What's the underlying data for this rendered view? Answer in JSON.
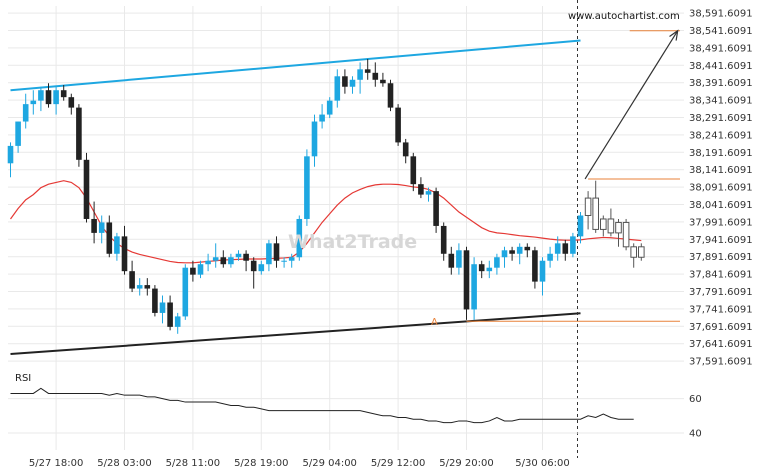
{
  "site_label": "www.autochartist.com",
  "watermark": "What2Trade",
  "point_label": "A",
  "rsi_label": "RSI",
  "colors": {
    "bull": "#1ea7e1",
    "bear": "#222222",
    "ma": "#e53935",
    "resistance": "#1ea7e1",
    "support": "#222222",
    "level": "#e8823a",
    "arrow": "#333333",
    "grid": "#e9e9e9"
  },
  "chart_data": {
    "type": "candlestick",
    "title": "",
    "x_ticks": [
      "5/27 18:00",
      "5/28 03:00",
      "5/28 11:00",
      "5/28 19:00",
      "5/29 04:00",
      "5/29 12:00",
      "5/29 20:00",
      "5/30 06:00"
    ],
    "y_ticks": [
      "38,591.6091",
      "38,541.6091",
      "38,491.6091",
      "38,441.6091",
      "38,391.6091",
      "38,341.6091",
      "38,291.6091",
      "38,241.6091",
      "38,191.6091",
      "38,141.6091",
      "38,091.6091",
      "38,041.6091",
      "37,991.6091",
      "37,941.6091",
      "37,891.6091",
      "37,841.6091",
      "37,791.6091",
      "37,741.6091",
      "37,691.6091",
      "37,641.6091",
      "37,591.6091"
    ],
    "ylim": [
      37566,
      38612
    ],
    "candles": [
      {
        "o": 38160,
        "h": 38220,
        "l": 38120,
        "c": 38210
      },
      {
        "o": 38210,
        "h": 38280,
        "l": 38190,
        "c": 38280
      },
      {
        "o": 38280,
        "h": 38360,
        "l": 38260,
        "c": 38330
      },
      {
        "o": 38330,
        "h": 38370,
        "l": 38300,
        "c": 38340
      },
      {
        "o": 38340,
        "h": 38380,
        "l": 38310,
        "c": 38370
      },
      {
        "o": 38370,
        "h": 38390,
        "l": 38320,
        "c": 38330
      },
      {
        "o": 38330,
        "h": 38380,
        "l": 38300,
        "c": 38370
      },
      {
        "o": 38370,
        "h": 38385,
        "l": 38340,
        "c": 38350
      },
      {
        "o": 38350,
        "h": 38360,
        "l": 38300,
        "c": 38320
      },
      {
        "o": 38320,
        "h": 38330,
        "l": 38150,
        "c": 38170
      },
      {
        "o": 38170,
        "h": 38190,
        "l": 37990,
        "c": 38000
      },
      {
        "o": 38000,
        "h": 38050,
        "l": 37930,
        "c": 37960
      },
      {
        "o": 37960,
        "h": 38010,
        "l": 37930,
        "c": 37990
      },
      {
        "o": 37990,
        "h": 38010,
        "l": 37890,
        "c": 37900
      },
      {
        "o": 37900,
        "h": 37960,
        "l": 37880,
        "c": 37950
      },
      {
        "o": 37950,
        "h": 37980,
        "l": 37840,
        "c": 37850
      },
      {
        "o": 37850,
        "h": 37880,
        "l": 37790,
        "c": 37800
      },
      {
        "o": 37800,
        "h": 37830,
        "l": 37780,
        "c": 37810
      },
      {
        "o": 37810,
        "h": 37830,
        "l": 37780,
        "c": 37800
      },
      {
        "o": 37800,
        "h": 37810,
        "l": 37720,
        "c": 37730
      },
      {
        "o": 37730,
        "h": 37780,
        "l": 37700,
        "c": 37760
      },
      {
        "o": 37760,
        "h": 37780,
        "l": 37680,
        "c": 37690
      },
      {
        "o": 37690,
        "h": 37730,
        "l": 37670,
        "c": 37720
      },
      {
        "o": 37720,
        "h": 37870,
        "l": 37710,
        "c": 37860
      },
      {
        "o": 37860,
        "h": 37880,
        "l": 37820,
        "c": 37840
      },
      {
        "o": 37840,
        "h": 37880,
        "l": 37830,
        "c": 37870
      },
      {
        "o": 37870,
        "h": 37900,
        "l": 37850,
        "c": 37880
      },
      {
        "o": 37880,
        "h": 37930,
        "l": 37860,
        "c": 37890
      },
      {
        "o": 37890,
        "h": 37910,
        "l": 37860,
        "c": 37870
      },
      {
        "o": 37870,
        "h": 37900,
        "l": 37860,
        "c": 37890
      },
      {
        "o": 37890,
        "h": 37910,
        "l": 37880,
        "c": 37900
      },
      {
        "o": 37900,
        "h": 37910,
        "l": 37850,
        "c": 37880
      },
      {
        "o": 37880,
        "h": 37890,
        "l": 37800,
        "c": 37850
      },
      {
        "o": 37850,
        "h": 37880,
        "l": 37840,
        "c": 37870
      },
      {
        "o": 37870,
        "h": 37940,
        "l": 37850,
        "c": 37930
      },
      {
        "o": 37930,
        "h": 37950,
        "l": 37860,
        "c": 37880
      },
      {
        "o": 37880,
        "h": 37890,
        "l": 37860,
        "c": 37880
      },
      {
        "o": 37880,
        "h": 37900,
        "l": 37860,
        "c": 37890
      },
      {
        "o": 37890,
        "h": 38010,
        "l": 37880,
        "c": 38000
      },
      {
        "o": 38000,
        "h": 38200,
        "l": 37980,
        "c": 38180
      },
      {
        "o": 38180,
        "h": 38300,
        "l": 38150,
        "c": 38280
      },
      {
        "o": 38280,
        "h": 38330,
        "l": 38260,
        "c": 38300
      },
      {
        "o": 38300,
        "h": 38350,
        "l": 38290,
        "c": 38340
      },
      {
        "o": 38340,
        "h": 38430,
        "l": 38320,
        "c": 38410
      },
      {
        "o": 38410,
        "h": 38430,
        "l": 38360,
        "c": 38380
      },
      {
        "o": 38380,
        "h": 38410,
        "l": 38360,
        "c": 38400
      },
      {
        "o": 38400,
        "h": 38450,
        "l": 38360,
        "c": 38430
      },
      {
        "o": 38430,
        "h": 38460,
        "l": 38400,
        "c": 38420
      },
      {
        "o": 38420,
        "h": 38450,
        "l": 38380,
        "c": 38400
      },
      {
        "o": 38400,
        "h": 38420,
        "l": 38380,
        "c": 38390
      },
      {
        "o": 38390,
        "h": 38400,
        "l": 38310,
        "c": 38320
      },
      {
        "o": 38320,
        "h": 38330,
        "l": 38210,
        "c": 38220
      },
      {
        "o": 38220,
        "h": 38230,
        "l": 38160,
        "c": 38180
      },
      {
        "o": 38180,
        "h": 38190,
        "l": 38080,
        "c": 38100
      },
      {
        "o": 38100,
        "h": 38120,
        "l": 38060,
        "c": 38070
      },
      {
        "o": 38070,
        "h": 38090,
        "l": 38050,
        "c": 38080
      },
      {
        "o": 38080,
        "h": 38090,
        "l": 37960,
        "c": 37980
      },
      {
        "o": 37980,
        "h": 37990,
        "l": 37880,
        "c": 37900
      },
      {
        "o": 37900,
        "h": 37920,
        "l": 37840,
        "c": 37860
      },
      {
        "o": 37860,
        "h": 37930,
        "l": 37840,
        "c": 37910
      },
      {
        "o": 37910,
        "h": 37920,
        "l": 37710,
        "c": 37740
      },
      {
        "o": 37740,
        "h": 37890,
        "l": 37710,
        "c": 37870
      },
      {
        "o": 37870,
        "h": 37880,
        "l": 37830,
        "c": 37850
      },
      {
        "o": 37850,
        "h": 37880,
        "l": 37830,
        "c": 37860
      },
      {
        "o": 37860,
        "h": 37900,
        "l": 37840,
        "c": 37890
      },
      {
        "o": 37890,
        "h": 37920,
        "l": 37860,
        "c": 37910
      },
      {
        "o": 37910,
        "h": 37920,
        "l": 37880,
        "c": 37900
      },
      {
        "o": 37900,
        "h": 37930,
        "l": 37870,
        "c": 37920
      },
      {
        "o": 37920,
        "h": 37930,
        "l": 37890,
        "c": 37910
      },
      {
        "o": 37910,
        "h": 37920,
        "l": 37800,
        "c": 37820
      },
      {
        "o": 37820,
        "h": 37890,
        "l": 37780,
        "c": 37880
      },
      {
        "o": 37880,
        "h": 37920,
        "l": 37860,
        "c": 37900
      },
      {
        "o": 37900,
        "h": 37950,
        "l": 37880,
        "c": 37930
      },
      {
        "o": 37930,
        "h": 37940,
        "l": 37880,
        "c": 37900
      },
      {
        "o": 37900,
        "h": 37960,
        "l": 37890,
        "c": 37950
      },
      {
        "o": 37950,
        "h": 38020,
        "l": 37930,
        "c": 38010
      },
      {
        "o": 38010,
        "h": 38080,
        "l": 37970,
        "c": 38060
      },
      {
        "o": 38060,
        "h": 38110,
        "l": 37960,
        "c": 37970
      },
      {
        "o": 37970,
        "h": 38010,
        "l": 37950,
        "c": 38000
      },
      {
        "o": 38000,
        "h": 38030,
        "l": 37950,
        "c": 37960
      },
      {
        "o": 37960,
        "h": 38000,
        "l": 37920,
        "c": 37990
      },
      {
        "o": 37990,
        "h": 38000,
        "l": 37910,
        "c": 37920
      },
      {
        "o": 37920,
        "h": 37930,
        "l": 37860,
        "c": 37890
      },
      {
        "o": 37890,
        "h": 37930,
        "l": 37880,
        "c": 37920
      }
    ],
    "ma": [
      38000,
      38030,
      38055,
      38070,
      38090,
      38100,
      38105,
      38110,
      38105,
      38090,
      38060,
      38020,
      37980,
      37950,
      37930,
      37915,
      37905,
      37898,
      37893,
      37888,
      37883,
      37878,
      37875,
      37874,
      37874,
      37876,
      37878,
      37880,
      37882,
      37883,
      37884,
      37885,
      37885,
      37885,
      37886,
      37887,
      37888,
      37890,
      37905,
      37930,
      37960,
      37990,
      38015,
      38040,
      38060,
      38075,
      38085,
      38093,
      38098,
      38100,
      38100,
      38099,
      38096,
      38092,
      38090,
      38085,
      38075,
      38060,
      38040,
      38020,
      38005,
      37990,
      37975,
      37965,
      37960,
      37958,
      37955,
      37952,
      37950,
      37948,
      37945,
      37942,
      37940,
      37939,
      37939,
      37940,
      37943,
      37945,
      37947,
      37946,
      37944,
      37942,
      37940,
      37938
    ],
    "resistance": {
      "from": [
        0,
        38370
      ],
      "to": [
        75,
        38513
      ]
    },
    "support": {
      "from": [
        0,
        37612
      ],
      "to": [
        75,
        37729
      ]
    },
    "levels": [
      {
        "name": "pattern high",
        "y": 38115,
        "from": 76
      },
      {
        "name": "pattern low",
        "y": 37706,
        "from": 60
      }
    ],
    "forecast_arrow": {
      "from": [
        76,
        38115
      ],
      "to": [
        92,
        38541
      ]
    },
    "current_time_index": 75,
    "rsi": {
      "yticks": [
        "60",
        "40"
      ],
      "ylim": [
        33,
        72
      ],
      "values": [
        63,
        63,
        63,
        63,
        66,
        63,
        63,
        63,
        63,
        63,
        63,
        63,
        63,
        62,
        63,
        62,
        62,
        62,
        61,
        61,
        60,
        59,
        59,
        58,
        58,
        58,
        58,
        58,
        57,
        56,
        56,
        55,
        55,
        54,
        53,
        53,
        53,
        53,
        53,
        53,
        53,
        53,
        53,
        53,
        53,
        53,
        53,
        52,
        51,
        50,
        50,
        49,
        49,
        48,
        48,
        47,
        47,
        46,
        46,
        47,
        47,
        46,
        46,
        47,
        49,
        47,
        47,
        48,
        48,
        48,
        48,
        48,
        48,
        48,
        48,
        48,
        50,
        49,
        51,
        49,
        48,
        48,
        48
      ]
    }
  }
}
